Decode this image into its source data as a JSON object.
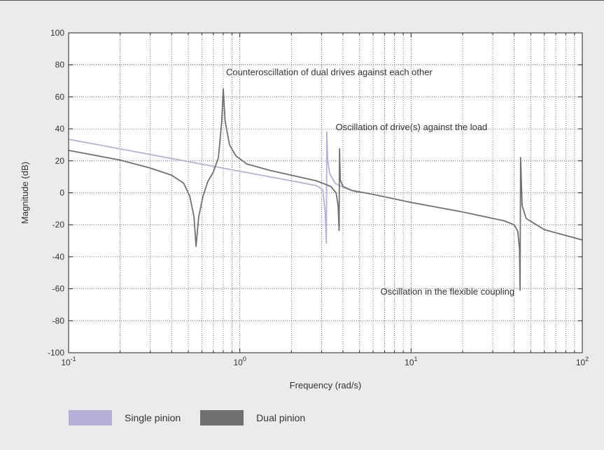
{
  "chart_data": {
    "type": "line",
    "title": "",
    "xlabel": "Frequency (rad/s)",
    "ylabel": "Magnitude (dB)",
    "xscale": "log",
    "xlim": [
      0.1,
      100
    ],
    "ylim": [
      -100,
      100
    ],
    "grid": true,
    "x_ticks": [
      {
        "value": 0.1,
        "base": "10",
        "exp": "-1"
      },
      {
        "value": 1,
        "base": "10",
        "exp": "0"
      },
      {
        "value": 10,
        "base": "10",
        "exp": "1"
      },
      {
        "value": 100,
        "base": "10",
        "exp": "2"
      }
    ],
    "y_ticks": [
      100,
      80,
      60,
      40,
      20,
      0,
      -20,
      -40,
      -60,
      -80,
      -100
    ],
    "y_tick_labels": [
      "100",
      "80",
      "60",
      "40",
      "20",
      "0",
      "-20",
      "-40",
      "-60",
      "-80",
      "-100"
    ],
    "legend_position": "bottom-left",
    "series": [
      {
        "name": "Single pinion",
        "color": "#b4b0d8",
        "points": [
          [
            0.1,
            33.5
          ],
          [
            0.2,
            27.5
          ],
          [
            0.5,
            19.5
          ],
          [
            1.0,
            13.5
          ],
          [
            2.0,
            7.5
          ],
          [
            2.8,
            4.5
          ],
          [
            3.05,
            2.0
          ],
          [
            3.15,
            -12
          ],
          [
            3.2,
            -31.5
          ],
          [
            3.22,
            38
          ],
          [
            3.26,
            20
          ],
          [
            3.35,
            12
          ],
          [
            3.6,
            6
          ],
          [
            4.0,
            3.5
          ],
          [
            4.5,
            1.5
          ],
          [
            5.0,
            0
          ]
        ]
      },
      {
        "name": "Dual pinion",
        "color": "#707070",
        "points": [
          [
            0.1,
            26.5
          ],
          [
            0.2,
            20.5
          ],
          [
            0.3,
            15.5
          ],
          [
            0.4,
            11
          ],
          [
            0.47,
            6
          ],
          [
            0.51,
            -2
          ],
          [
            0.54,
            -15
          ],
          [
            0.555,
            -33.5
          ],
          [
            0.575,
            -15
          ],
          [
            0.61,
            -2
          ],
          [
            0.65,
            7
          ],
          [
            0.7,
            13
          ],
          [
            0.75,
            22
          ],
          [
            0.785,
            45
          ],
          [
            0.8,
            65
          ],
          [
            0.82,
            45
          ],
          [
            0.87,
            30
          ],
          [
            0.95,
            23
          ],
          [
            1.1,
            18
          ],
          [
            1.5,
            14
          ],
          [
            2.0,
            11
          ],
          [
            2.8,
            7.5
          ],
          [
            3.4,
            4
          ],
          [
            3.65,
            0
          ],
          [
            3.75,
            -8
          ],
          [
            3.8,
            -23.5
          ],
          [
            3.82,
            27.5
          ],
          [
            3.86,
            8
          ],
          [
            4.0,
            4
          ],
          [
            4.5,
            1.5
          ],
          [
            6.0,
            -1
          ],
          [
            10.0,
            -6
          ],
          [
            20.0,
            -12
          ],
          [
            35.0,
            -17.5
          ],
          [
            40.0,
            -20
          ],
          [
            42.0,
            -24
          ],
          [
            43.0,
            -35
          ],
          [
            43.3,
            -61
          ],
          [
            43.6,
            22
          ],
          [
            44.5,
            -8
          ],
          [
            47.0,
            -16
          ],
          [
            60.0,
            -23
          ],
          [
            100.0,
            -29.5
          ]
        ]
      }
    ],
    "annotations": [
      {
        "text": "Counteroscillation of dual drives against each other",
        "x": 0.8,
        "y": 70
      },
      {
        "text": "Oscillation of drive(s) against the load",
        "x": 3.3,
        "y": 40
      },
      {
        "text": "Oscillation in the flexible coupling",
        "x": 43.3,
        "y": -62
      }
    ]
  }
}
